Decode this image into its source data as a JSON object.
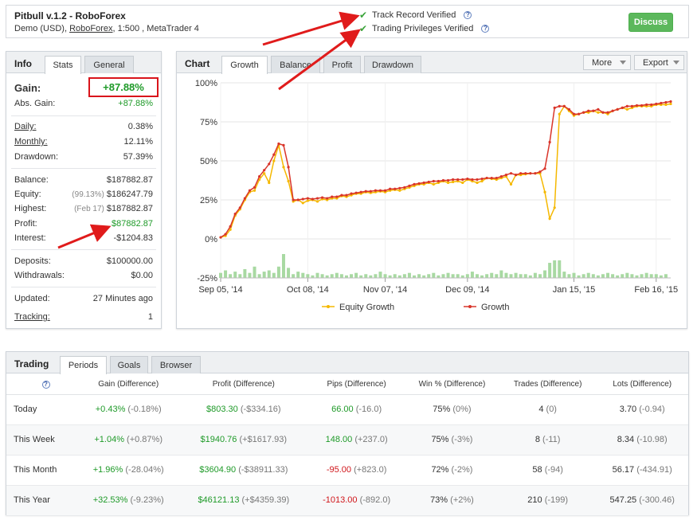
{
  "header": {
    "title": "Pitbull v.1.2 - RoboForex",
    "subtitle_prefix": "Demo (USD), ",
    "broker_link": "RoboForex",
    "subtitle_suffix": ", 1:500 , MetaTrader 4",
    "track_record": "Track Record Verified",
    "trading_privileges": "Trading Privileges Verified",
    "help_glyph": "?",
    "discuss_label": "Discuss"
  },
  "info": {
    "title": "Info",
    "tabs": [
      "Stats",
      "General"
    ],
    "gain_label": "Gain:",
    "gain_value": "+87.88%",
    "abs_gain_label": "Abs. Gain:",
    "abs_gain_value": "+87.88%",
    "daily_label": "Daily:",
    "daily_value": "0.38%",
    "monthly_label": "Monthly:",
    "monthly_value": "12.11%",
    "drawdown_label": "Drawdown:",
    "drawdown_value": "57.39%",
    "balance_label": "Balance:",
    "balance_value": "$187882.87",
    "equity_label": "Equity:",
    "equity_pct": "(99.13%)",
    "equity_value": "$186247.79",
    "highest_label": "Highest:",
    "highest_date": "(Feb 17)",
    "highest_value": "$187882.87",
    "profit_label": "Profit:",
    "profit_value": "$87882.87",
    "interest_label": "Interest:",
    "interest_value": "-$1204.83",
    "deposits_label": "Deposits:",
    "deposits_value": "$100000.00",
    "withdrawals_label": "Withdrawals:",
    "withdrawals_value": "$0.00",
    "updated_label": "Updated:",
    "updated_value": "27 Minutes ago",
    "tracking_label": "Tracking:",
    "tracking_value": "1"
  },
  "chart": {
    "title": "Chart",
    "tabs": [
      "Growth",
      "Balance",
      "Profit",
      "Drawdown"
    ],
    "more_label": "More",
    "export_label": "Export",
    "colors": {
      "equity": "#f5b800",
      "growth": "#d9352a",
      "volume": "#a8d9a2",
      "grid": "#e6e6e6"
    }
  },
  "chart_data": {
    "type": "line",
    "title": "",
    "xlabel": "",
    "ylabel": "",
    "ylim": [
      -25,
      100
    ],
    "yticks": [
      "100%",
      "75%",
      "50%",
      "25%",
      "0%",
      "-25%"
    ],
    "ytick_values": [
      100,
      75,
      50,
      25,
      0,
      -25
    ],
    "xticks": [
      "Sep 05, '14",
      "Oct 08, '14",
      "Nov 07, '14",
      "Dec 09, '14",
      "Jan 15, '15",
      "Feb 16, '15"
    ],
    "xtick_index": [
      0,
      18,
      34,
      51,
      73,
      90
    ],
    "legend_position": "bottom",
    "grid": true,
    "series": [
      {
        "name": "Growth",
        "values": [
          1,
          3,
          8,
          16,
          20,
          26,
          31,
          33,
          40,
          44,
          48,
          54,
          61,
          60,
          46,
          25,
          25,
          25.5,
          26,
          25.5,
          26,
          26.5,
          26,
          27,
          27,
          28,
          28,
          29,
          29.5,
          30,
          30.5,
          30.5,
          31,
          31,
          31,
          32,
          32,
          32.5,
          33,
          34,
          35,
          35.5,
          36,
          36.5,
          37,
          37,
          37.5,
          37.5,
          38,
          38,
          38,
          38.5,
          38,
          38,
          38.5,
          39,
          39,
          39,
          40,
          41,
          42,
          41,
          42,
          42,
          42,
          42,
          43,
          45,
          62,
          84,
          85,
          85,
          83,
          80,
          80,
          81,
          82,
          82,
          83,
          81,
          81,
          82,
          83,
          84,
          85,
          85,
          85.5,
          85.5,
          86,
          86,
          86.5,
          87,
          87.5,
          88
        ]
      },
      {
        "name": "Equity Growth",
        "values": [
          1,
          2,
          6,
          15,
          19,
          25,
          30,
          31,
          38,
          42,
          36,
          50,
          60,
          46,
          37,
          24,
          25,
          23,
          24.5,
          25,
          24,
          25.5,
          25,
          26,
          26,
          27.5,
          27,
          28,
          29,
          29,
          30,
          29.5,
          30,
          30.5,
          30,
          31,
          31.5,
          31,
          32,
          33,
          34,
          35,
          35,
          36,
          35,
          36,
          37,
          36,
          36.5,
          37,
          36,
          38,
          37,
          36,
          37,
          39,
          38.5,
          38,
          39,
          40,
          35,
          41,
          41,
          41.5,
          42,
          42,
          42,
          30,
          13,
          20,
          80,
          85,
          82,
          79,
          80,
          81,
          81,
          82,
          81,
          81,
          80,
          82,
          83,
          84,
          83,
          84,
          85,
          85,
          85,
          85,
          86,
          86,
          86,
          86.5
        ]
      }
    ],
    "volume": [
      4,
      6,
      3,
      5,
      3,
      7,
      4,
      9,
      3,
      5,
      6,
      4,
      9,
      19,
      8,
      3,
      5,
      4,
      3,
      2,
      4,
      3,
      2,
      3,
      4,
      3,
      2,
      3,
      4,
      2,
      3,
      2,
      3,
      5,
      3,
      2,
      3,
      2,
      3,
      4,
      2,
      3,
      2,
      3,
      4,
      2,
      3,
      4,
      3,
      3,
      2,
      3,
      5,
      3,
      2,
      3,
      4,
      3,
      6,
      4,
      3,
      4,
      3,
      3,
      2,
      4,
      3,
      6,
      12,
      14,
      14,
      5,
      3,
      4,
      2,
      3,
      4,
      3,
      2,
      3,
      4,
      3,
      2,
      3,
      4,
      3,
      2,
      3,
      4,
      3,
      3,
      2,
      3
    ]
  },
  "trading": {
    "title": "Trading",
    "tabs": [
      "Periods",
      "Goals",
      "Browser"
    ],
    "help_glyph": "?",
    "headers": [
      "Gain (Difference)",
      "Profit (Difference)",
      "Pips (Difference)",
      "Win % (Difference)",
      "Trades (Difference)",
      "Lots (Difference)"
    ],
    "rows": [
      {
        "period": "Today",
        "gain": "+0.43%",
        "gain_diff": "(-0.18%)",
        "profit": "$803.30",
        "profit_diff": "(-$334.16)",
        "pips": "66.00",
        "pips_diff": "(-16.0)",
        "win": "75%",
        "win_diff": "(0%)",
        "trades": "4",
        "trades_diff": "(0)",
        "lots": "3.70",
        "lots_diff": "(-0.94)"
      },
      {
        "period": "This Week",
        "gain": "+1.04%",
        "gain_diff": "(+0.87%)",
        "profit": "$1940.76",
        "profit_diff": "(+$1617.93)",
        "pips": "148.00",
        "pips_diff": "(+237.0)",
        "win": "75%",
        "win_diff": "(-3%)",
        "trades": "8",
        "trades_diff": "(-11)",
        "lots": "8.34",
        "lots_diff": "(-10.98)"
      },
      {
        "period": "This Month",
        "gain": "+1.96%",
        "gain_diff": "(-28.04%)",
        "profit": "$3604.90",
        "profit_diff": "(-$38911.33)",
        "pips": "-95.00",
        "pips_diff": "(+823.0)",
        "win": "72%",
        "win_diff": "(-2%)",
        "trades": "58",
        "trades_diff": "(-94)",
        "lots": "56.17",
        "lots_diff": "(-434.91)"
      },
      {
        "period": "This Year",
        "gain": "+32.53%",
        "gain_diff": "(-9.23%)",
        "profit": "$46121.13",
        "profit_diff": "(+$4359.39)",
        "pips": "-1013.00",
        "pips_diff": "(-892.0)",
        "win": "73%",
        "win_diff": "(+2%)",
        "trades": "210",
        "trades_diff": "(-199)",
        "lots": "547.25",
        "lots_diff": "(-300.46)"
      }
    ]
  }
}
